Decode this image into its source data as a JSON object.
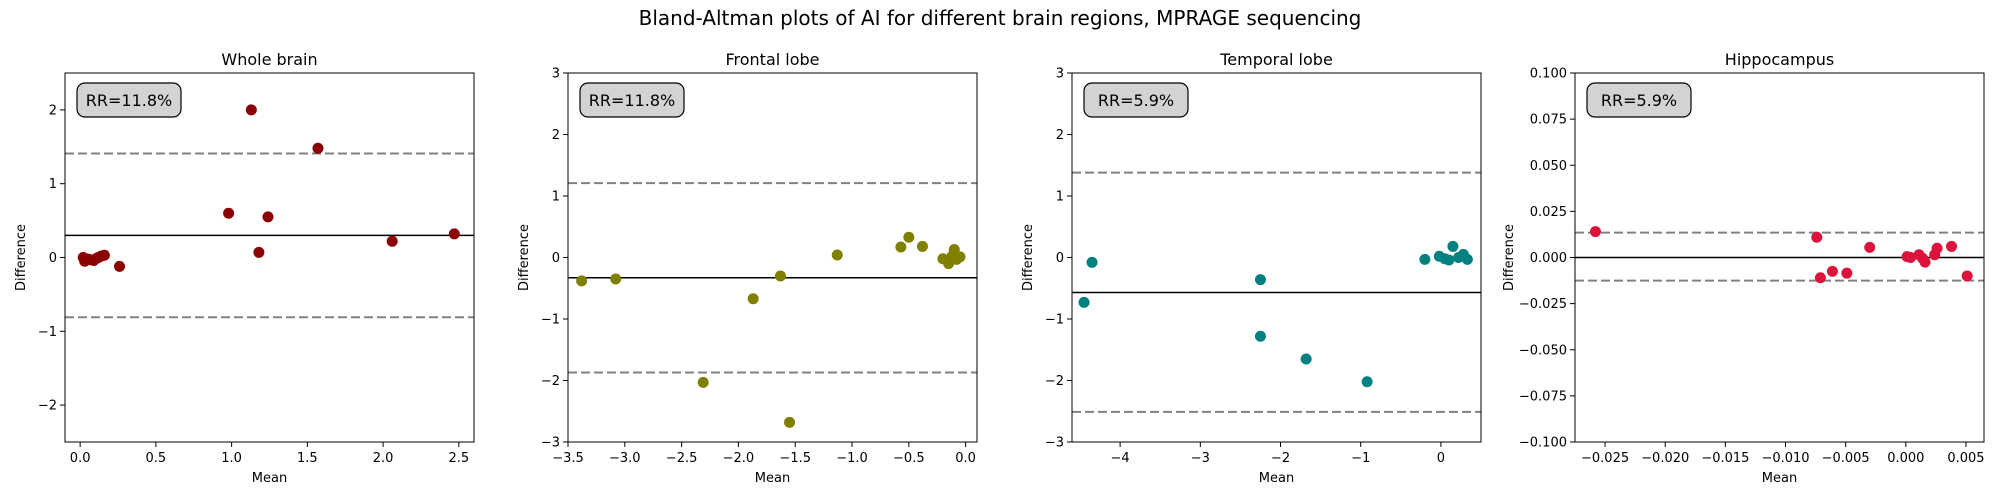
{
  "figure": {
    "title": "Bland-Altman plots of AI for different brain regions, MPRAGE sequencing"
  },
  "chart_data": [
    {
      "type": "scatter",
      "title": "Whole brain",
      "xlabel": "Mean",
      "ylabel": "Difference",
      "annotation": "RR=11.8%",
      "color": "#8b0000",
      "xlim": [
        -0.1,
        2.6
      ],
      "ylim": [
        -2.5,
        2.5
      ],
      "xticks": [
        0.0,
        0.5,
        1.0,
        1.5,
        2.0,
        2.5
      ],
      "xtick_labels": [
        "0.0",
        "0.5",
        "1.0",
        "1.5",
        "2.0",
        "2.5"
      ],
      "yticks": [
        -2,
        -1,
        0,
        1,
        2
      ],
      "ytick_labels": [
        "−2",
        "−1",
        "0",
        "1",
        "2"
      ],
      "mean_line": 0.3,
      "loa_upper": 1.41,
      "loa_lower": -0.81,
      "x": [
        0.02,
        0.03,
        0.05,
        0.07,
        0.09,
        0.11,
        0.12,
        0.14,
        0.16,
        0.26,
        0.98,
        1.13,
        1.18,
        1.24,
        1.57,
        2.06,
        2.47
      ],
      "y": [
        0.0,
        -0.05,
        -0.02,
        -0.03,
        -0.04,
        -0.01,
        0.0,
        0.02,
        0.03,
        -0.12,
        0.6,
        2.0,
        0.07,
        0.55,
        1.48,
        0.22,
        0.32
      ]
    },
    {
      "type": "scatter",
      "title": "Frontal lobe",
      "xlabel": "Mean",
      "ylabel": "Difference",
      "annotation": "RR=11.8%",
      "color": "#808000",
      "xlim": [
        -3.5,
        0.1
      ],
      "ylim": [
        -3,
        3
      ],
      "xticks": [
        -3.5,
        -3.0,
        -2.5,
        -2.0,
        -1.5,
        -1.0,
        -0.5,
        0.0
      ],
      "xtick_labels": [
        "−3.5",
        "−3.0",
        "−2.5",
        "−2.0",
        "−1.5",
        "−1.0",
        "−0.5",
        "0.0"
      ],
      "yticks": [
        -3,
        -2,
        -1,
        0,
        1,
        2,
        3
      ],
      "ytick_labels": [
        "−3",
        "−2",
        "−1",
        "0",
        "1",
        "2",
        "3"
      ],
      "mean_line": -0.33,
      "loa_upper": 1.21,
      "loa_lower": -1.87,
      "x": [
        -3.38,
        -3.08,
        -2.31,
        -1.87,
        -1.63,
        -1.55,
        -1.13,
        -0.57,
        -0.5,
        -0.38,
        -0.2,
        -0.15,
        -0.12,
        -0.1,
        -0.08,
        -0.05
      ],
      "y": [
        -0.38,
        -0.35,
        -2.03,
        -0.67,
        -0.3,
        -2.68,
        0.04,
        0.17,
        0.33,
        0.18,
        -0.02,
        -0.1,
        0.02,
        0.13,
        -0.03,
        0.01
      ]
    },
    {
      "type": "scatter",
      "title": "Temporal lobe",
      "xlabel": "Mean",
      "ylabel": "Difference",
      "annotation": "RR=5.9%",
      "color": "#008080",
      "xlim": [
        -4.6,
        0.5
      ],
      "ylim": [
        -3,
        3
      ],
      "xticks": [
        -4,
        -3,
        -2,
        -1,
        0
      ],
      "xtick_labels": [
        "−4",
        "−3",
        "−2",
        "−1",
        "0"
      ],
      "yticks": [
        -3,
        -2,
        -1,
        0,
        1,
        2,
        3
      ],
      "ytick_labels": [
        "−3",
        "−2",
        "−1",
        "0",
        "1",
        "2",
        "3"
      ],
      "mean_line": -0.57,
      "loa_upper": 1.38,
      "loa_lower": -2.51,
      "x": [
        -4.45,
        -4.35,
        -2.25,
        -2.25,
        -1.68,
        -0.92,
        -0.2,
        -0.02,
        0.05,
        0.1,
        0.15,
        0.22,
        0.28,
        0.33
      ],
      "y": [
        -0.73,
        -0.08,
        -0.36,
        -1.28,
        -1.65,
        -2.02,
        -0.03,
        0.02,
        -0.02,
        -0.04,
        0.18,
        0.0,
        0.05,
        -0.03
      ]
    },
    {
      "type": "scatter",
      "title": "Hippocampus",
      "xlabel": "Mean",
      "ylabel": "Difference",
      "annotation": "RR=5.9%",
      "color": "#dc143c",
      "xlim": [
        -0.0275,
        0.0065
      ],
      "ylim": [
        -0.1,
        0.1
      ],
      "xticks": [
        -0.025,
        -0.02,
        -0.015,
        -0.01,
        -0.005,
        0.0,
        0.005
      ],
      "xtick_labels": [
        "−0.025",
        "−0.020",
        "−0.015",
        "−0.010",
        "−0.005",
        "0.000",
        "0.005"
      ],
      "yticks": [
        -0.1,
        -0.075,
        -0.05,
        -0.025,
        0.0,
        0.025,
        0.05,
        0.075,
        0.1
      ],
      "ytick_labels": [
        "−0.100",
        "−0.075",
        "−0.050",
        "−0.025",
        "0.000",
        "0.025",
        "0.050",
        "0.075",
        "0.100"
      ],
      "mean_line": 0.0,
      "loa_upper": 0.0135,
      "loa_lower": -0.0125,
      "x": [
        -0.0258,
        -0.0074,
        -0.0071,
        -0.0061,
        -0.0049,
        -0.003,
        0.0001,
        0.0004,
        0.0011,
        0.0014,
        0.0016,
        0.0024,
        0.0026,
        0.0038,
        0.0051
      ],
      "y": [
        0.014,
        0.011,
        -0.011,
        -0.0075,
        -0.0085,
        0.0055,
        0.0005,
        0.0,
        0.0015,
        -0.0005,
        -0.0025,
        0.0015,
        0.005,
        0.006,
        -0.01
      ]
    }
  ]
}
